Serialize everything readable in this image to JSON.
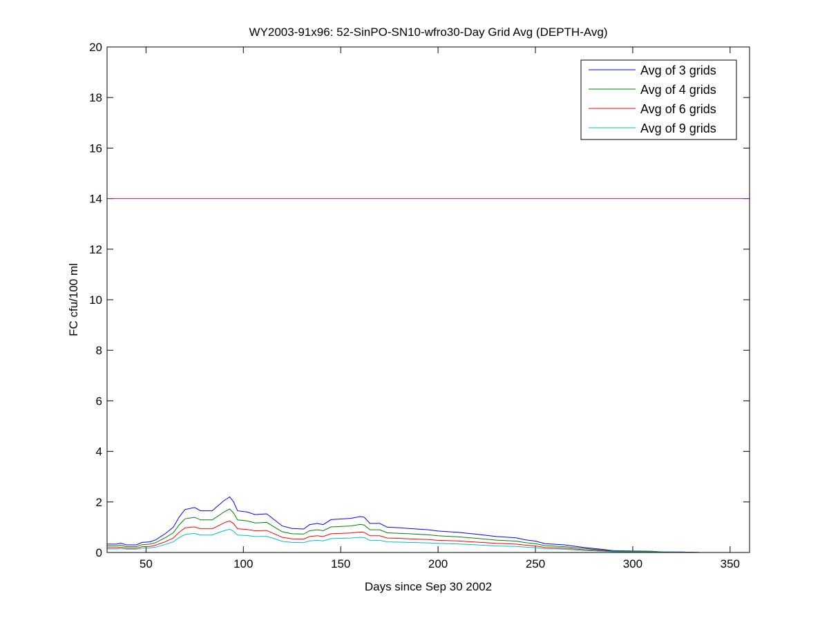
{
  "chart_data": {
    "type": "line",
    "title": "WY2003-91x96: 52-SinPO-SN10-wfro30-Day Grid Avg (DEPTH-Avg)",
    "xlabel": "Days since Sep 30 2002",
    "ylabel": "FC cfu/100 ml",
    "xlim": [
      30,
      360
    ],
    "ylim": [
      0,
      20
    ],
    "xticks": [
      50,
      100,
      150,
      200,
      250,
      300,
      350
    ],
    "yticks": [
      0,
      2,
      4,
      6,
      8,
      10,
      12,
      14,
      16,
      18,
      20
    ],
    "grid": false,
    "legend_position": "top-right",
    "x": [
      30,
      35,
      37,
      40,
      45,
      48,
      52,
      55,
      60,
      64,
      67,
      70,
      73,
      75,
      78,
      84,
      87,
      90,
      93,
      95,
      97,
      102,
      106,
      112,
      115,
      120,
      125,
      131,
      134,
      138,
      141,
      145,
      155,
      160,
      162,
      165,
      170,
      174,
      180,
      185,
      195,
      200,
      210,
      220,
      230,
      240,
      245,
      250,
      255,
      265,
      275,
      285,
      290,
      310,
      315,
      325,
      335
    ],
    "series": [
      {
        "name": "Avg of 3 grids",
        "color": "#0000ff",
        "values": [
          0.33,
          0.33,
          0.37,
          0.3,
          0.3,
          0.4,
          0.42,
          0.5,
          0.75,
          1.0,
          1.4,
          1.7,
          1.75,
          1.78,
          1.65,
          1.65,
          1.85,
          2.05,
          2.2,
          2.0,
          1.65,
          1.6,
          1.5,
          1.53,
          1.35,
          1.05,
          0.95,
          0.93,
          1.1,
          1.15,
          1.1,
          1.3,
          1.35,
          1.42,
          1.4,
          1.15,
          1.15,
          1.0,
          0.98,
          0.95,
          0.9,
          0.85,
          0.8,
          0.72,
          0.63,
          0.58,
          0.5,
          0.45,
          0.35,
          0.3,
          0.2,
          0.12,
          0.07,
          0.05,
          0.02,
          0.02,
          0.0
        ]
      },
      {
        "name": "Avg of 4 grids",
        "color": "#008000",
        "values": [
          0.26,
          0.26,
          0.29,
          0.23,
          0.23,
          0.31,
          0.33,
          0.39,
          0.59,
          0.78,
          1.09,
          1.33,
          1.37,
          1.39,
          1.29,
          1.29,
          1.44,
          1.6,
          1.72,
          1.56,
          1.29,
          1.25,
          1.17,
          1.19,
          1.05,
          0.82,
          0.74,
          0.73,
          0.86,
          0.9,
          0.86,
          1.01,
          1.05,
          1.11,
          1.09,
          0.9,
          0.9,
          0.78,
          0.76,
          0.74,
          0.7,
          0.66,
          0.62,
          0.56,
          0.49,
          0.45,
          0.39,
          0.35,
          0.27,
          0.23,
          0.16,
          0.09,
          0.06,
          0.04,
          0.02,
          0.01,
          0.0
        ]
      },
      {
        "name": "Avg of 6 grids",
        "color": "#ff0000",
        "values": [
          0.19,
          0.19,
          0.21,
          0.17,
          0.17,
          0.23,
          0.24,
          0.29,
          0.43,
          0.57,
          0.8,
          0.97,
          1.0,
          1.01,
          0.94,
          0.94,
          1.05,
          1.17,
          1.25,
          1.14,
          0.94,
          0.91,
          0.86,
          0.87,
          0.77,
          0.6,
          0.54,
          0.53,
          0.63,
          0.66,
          0.63,
          0.74,
          0.77,
          0.81,
          0.8,
          0.66,
          0.66,
          0.57,
          0.56,
          0.54,
          0.51,
          0.48,
          0.46,
          0.41,
          0.36,
          0.33,
          0.29,
          0.26,
          0.2,
          0.17,
          0.11,
          0.07,
          0.04,
          0.03,
          0.01,
          0.01,
          0.0
        ]
      },
      {
        "name": "Avg of 9 grids",
        "color": "#00bfbf",
        "values": [
          0.14,
          0.14,
          0.16,
          0.13,
          0.13,
          0.17,
          0.18,
          0.21,
          0.32,
          0.42,
          0.59,
          0.71,
          0.74,
          0.75,
          0.69,
          0.69,
          0.78,
          0.86,
          0.92,
          0.84,
          0.69,
          0.67,
          0.63,
          0.64,
          0.57,
          0.44,
          0.4,
          0.39,
          0.46,
          0.48,
          0.46,
          0.55,
          0.57,
          0.6,
          0.59,
          0.48,
          0.48,
          0.42,
          0.41,
          0.4,
          0.38,
          0.36,
          0.34,
          0.3,
          0.26,
          0.24,
          0.21,
          0.19,
          0.15,
          0.13,
          0.08,
          0.05,
          0.03,
          0.02,
          0.01,
          0.01,
          0.0
        ]
      }
    ],
    "reference_line": {
      "y": 14,
      "color": "#bf00bf"
    }
  }
}
